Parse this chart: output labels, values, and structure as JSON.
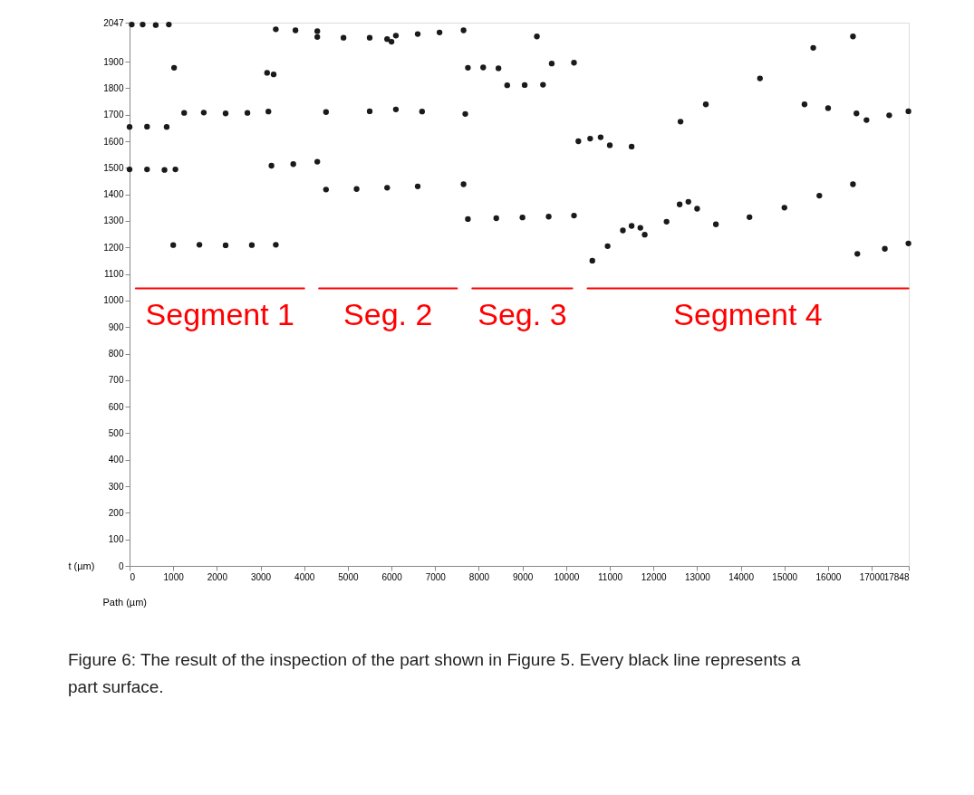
{
  "chart_data": {
    "type": "scatter",
    "xlabel": "Path (µm)",
    "ylabel": "t (µm)",
    "xlim": [
      0,
      17848
    ],
    "xticks": [
      0,
      1000,
      2000,
      3000,
      4000,
      5000,
      6000,
      7000,
      8000,
      9000,
      10000,
      11000,
      12000,
      13000,
      14000,
      15000,
      16000,
      17000,
      17848
    ],
    "ylim": [
      0,
      2047
    ],
    "yticks": [
      0,
      100,
      200,
      300,
      400,
      500,
      600,
      700,
      800,
      900,
      1000,
      1100,
      1200,
      1300,
      1400,
      1500,
      1600,
      1700,
      1800,
      1900,
      2047
    ],
    "grid": false,
    "marker": "circle",
    "series": [
      {
        "color": "#1a1a1a",
        "x": [
          50,
          300,
          600,
          900,
          1020,
          3150,
          3300,
          1250,
          1700,
          2200,
          2700,
          3180,
          0,
          400,
          850,
          0,
          400,
          800,
          1050,
          3250,
          3750,
          4300,
          1000,
          1600,
          2200,
          2800,
          3350,
          3350,
          3800,
          4300,
          4300,
          4900,
          5500,
          5900,
          6000,
          6100,
          6600,
          7100,
          7650,
          4500,
          5500,
          6100,
          6700,
          7690,
          4500,
          5200,
          5900,
          6600,
          7650,
          7750,
          8100,
          8450,
          8650,
          9050,
          9470,
          9670,
          10180,
          7750,
          8400,
          9000,
          9600,
          10180,
          9330,
          10280,
          10550,
          10790,
          11000,
          11500,
          10600,
          10950,
          11300,
          11500,
          11700,
          11800,
          12300,
          12600,
          12800,
          13000,
          13430,
          14200,
          15000,
          15800,
          16570,
          12620,
          13200,
          14440,
          15660,
          16570,
          15460,
          16000,
          16650,
          16880,
          17400,
          17840,
          16670,
          17300,
          17840
        ],
        "values": [
          2040,
          2040,
          2038,
          2040,
          1877,
          1858,
          1852,
          1707,
          1708,
          1705,
          1707,
          1712,
          1654,
          1655,
          1654,
          1494,
          1494,
          1492,
          1494,
          1508,
          1514,
          1523,
          1209,
          1210,
          1208,
          1209,
          1210,
          2022,
          2018,
          2015,
          1993,
          1990,
          1990,
          1985,
          1975,
          1998,
          2004,
          2010,
          2018,
          1710,
          1713,
          1720,
          1712,
          1703,
          1418,
          1420,
          1425,
          1430,
          1438,
          1877,
          1878,
          1875,
          1811,
          1812,
          1813,
          1893,
          1896,
          1307,
          1310,
          1313,
          1316,
          1320,
          1995,
          1600,
          1610,
          1615,
          1585,
          1580,
          1150,
          1205,
          1264,
          1281,
          1274,
          1248,
          1297,
          1362,
          1372,
          1346,
          1287,
          1314,
          1350,
          1395,
          1438,
          1674,
          1739,
          1837,
          1952,
          1995,
          1739,
          1725,
          1705,
          1680,
          1698,
          1713,
          1176,
          1195,
          1215
        ]
      },
      {
        "type": "line",
        "color": "#ff0000",
        "marker": "none",
        "x": [
          142,
          4000
        ],
        "values": [
          1046,
          1046
        ]
      },
      {
        "type": "line",
        "color": "#ff0000",
        "marker": "none",
        "x": [
          4340,
          7500
        ],
        "values": [
          1046,
          1046
        ]
      },
      {
        "type": "line",
        "color": "#ff0000",
        "marker": "none",
        "x": [
          7850,
          10140
        ],
        "values": [
          1046,
          1046
        ]
      },
      {
        "type": "line",
        "color": "#ff0000",
        "marker": "none",
        "x": [
          10490,
          17840
        ],
        "values": [
          1046,
          1046
        ]
      }
    ],
    "annotations": [
      "Segment 1",
      "Seg. 2",
      "Seg. 3",
      "Segment 4",
      "Figure 6: The result of the inspection of the part shown in Figure 5. Every black line represents a part surface."
    ]
  }
}
